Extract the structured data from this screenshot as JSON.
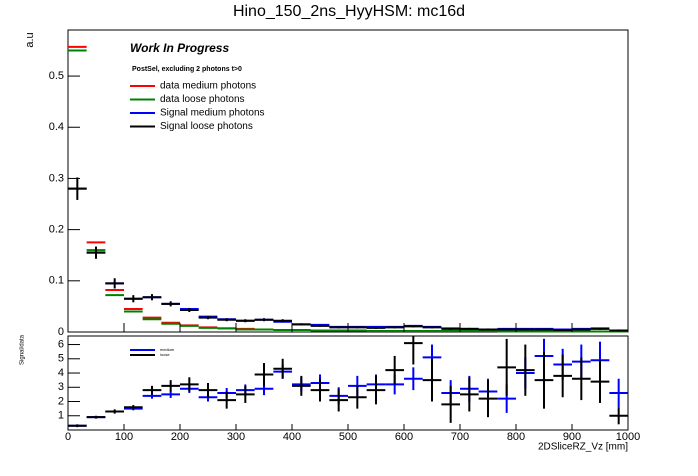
{
  "chart_data": [
    {
      "type": "histogram",
      "title": "Hino_150_2ns_HyyHSM: mc16d",
      "ylabel": "a.u",
      "annotations": [
        "Work In Progress",
        "PostSel, excluding 2 photons t>0"
      ],
      "bins": [
        0,
        33.3,
        66.7,
        100,
        133.3,
        166.7,
        200,
        233.3,
        266.7,
        300,
        333.3,
        366.7,
        400,
        433.3,
        466.7,
        500,
        533.3,
        566.7,
        600,
        633.3,
        666.7,
        700,
        733.3,
        766.7,
        800,
        833.3,
        866.7,
        900,
        933.3,
        966.7,
        1000
      ],
      "xlim": [
        0,
        1000
      ],
      "xticks": [
        0,
        100,
        200,
        300,
        400,
        500,
        600,
        700,
        800,
        900,
        1000
      ],
      "ylim": [
        0,
        0.59
      ],
      "yticks": [
        0,
        0.1,
        0.2,
        0.3,
        0.4,
        0.5
      ],
      "series": [
        {
          "name": "data medium photons",
          "color": "#ff0000",
          "values": [
            0.557,
            0.175,
            0.082,
            0.045,
            0.028,
            0.018,
            0.013,
            0.009,
            0.007,
            0.006,
            0.005,
            0.004,
            0.004,
            0.003,
            0.003,
            0.003,
            0.002,
            0.002,
            0.002,
            0.002,
            0.002,
            0.002,
            0.002,
            0.001,
            0.001,
            0.001,
            0.001,
            0.001,
            0.001,
            0.001
          ]
        },
        {
          "name": "data loose photons",
          "color": "#008000",
          "values": [
            0.55,
            0.16,
            0.072,
            0.04,
            0.025,
            0.016,
            0.012,
            0.008,
            0.007,
            0.005,
            0.005,
            0.004,
            0.004,
            0.003,
            0.003,
            0.003,
            0.002,
            0.002,
            0.002,
            0.002,
            0.002,
            0.002,
            0.002,
            0.001,
            0.001,
            0.001,
            0.001,
            0.001,
            0.001,
            0.001
          ]
        },
        {
          "name": "Signal medium photons",
          "color": "#0000ff",
          "values": [
            0.28,
            0.155,
            0.095,
            0.065,
            0.068,
            0.055,
            0.045,
            0.03,
            0.025,
            0.022,
            0.024,
            0.02,
            0.015,
            0.014,
            0.01,
            0.01,
            0.01,
            0.01,
            0.012,
            0.01,
            0.007,
            0.006,
            0.005,
            0.006,
            0.006,
            0.006,
            0.005,
            0.006,
            0.007,
            0.003
          ]
        },
        {
          "name": "Signal loose photons",
          "color": "#000000",
          "values": [
            0.28,
            0.155,
            0.095,
            0.065,
            0.068,
            0.055,
            0.043,
            0.028,
            0.024,
            0.022,
            0.024,
            0.022,
            0.015,
            0.012,
            0.009,
            0.009,
            0.008,
            0.009,
            0.011,
            0.009,
            0.006,
            0.006,
            0.005,
            0.005,
            0.005,
            0.005,
            0.004,
            0.005,
            0.006,
            0.003
          ],
          "errors": [
            0.022,
            0.012,
            0.01,
            0.007,
            0.006,
            0.005,
            0.004,
            0.003,
            0.003,
            0.003,
            0.003,
            0.003,
            0.002,
            0.002,
            0.002,
            0.002,
            0.002,
            0.002,
            0.002,
            0.002,
            0.002,
            0.002,
            0.002,
            0.002,
            0.002,
            0.002,
            0.002,
            0.002,
            0.002,
            0.002
          ]
        }
      ]
    },
    {
      "type": "histogram",
      "ylabel": "Signal/data",
      "xlabel": "2DSliceRZ_Vz [mm]",
      "bins": [
        0,
        33.3,
        66.7,
        100,
        133.3,
        166.7,
        200,
        233.3,
        266.7,
        300,
        333.3,
        366.7,
        400,
        433.3,
        466.7,
        500,
        533.3,
        566.7,
        600,
        633.3,
        666.7,
        700,
        733.3,
        766.7,
        800,
        833.3,
        866.7,
        900,
        933.3,
        966.7,
        1000
      ],
      "xlim": [
        0,
        1000
      ],
      "xticks": [
        0,
        100,
        200,
        300,
        400,
        500,
        600,
        700,
        800,
        900,
        1000
      ],
      "ylim": [
        0,
        6.6
      ],
      "yticks": [
        1,
        2,
        3,
        4,
        5,
        6
      ],
      "series": [
        {
          "name": "medium",
          "color": "#0000ff",
          "values": [
            0.3,
            0.9,
            1.3,
            1.5,
            2.4,
            2.5,
            2.9,
            2.3,
            2.6,
            2.8,
            2.9,
            4.1,
            3.2,
            3.3,
            2.4,
            3.1,
            3.2,
            3.2,
            3.6,
            5.1,
            2.6,
            2.9,
            2.7,
            2.2,
            4.0,
            5.2,
            4.6,
            4.8,
            4.9,
            2.6
          ],
          "errors": [
            0.05,
            0.08,
            0.1,
            0.12,
            0.2,
            0.25,
            0.3,
            0.3,
            0.35,
            0.4,
            0.45,
            0.5,
            0.5,
            0.6,
            0.6,
            0.7,
            0.7,
            0.7,
            0.8,
            0.9,
            0.9,
            0.9,
            0.9,
            1.0,
            1.1,
            1.2,
            1.1,
            1.2,
            1.3,
            1.0
          ]
        },
        {
          "name": "loose",
          "color": "#000000",
          "values": [
            0.3,
            0.9,
            1.3,
            1.6,
            2.8,
            3.1,
            3.2,
            2.8,
            2.1,
            2.5,
            3.9,
            4.3,
            3.1,
            2.8,
            2.1,
            2.3,
            2.8,
            4.2,
            6.1,
            3.5,
            1.8,
            2.5,
            2.2,
            4.4,
            4.2,
            3.5,
            3.8,
            3.6,
            3.4,
            1.0
          ],
          "errors": [
            0.1,
            0.1,
            0.15,
            0.15,
            0.3,
            0.4,
            0.5,
            0.5,
            0.6,
            0.6,
            0.8,
            0.7,
            0.7,
            0.8,
            0.8,
            0.8,
            1.0,
            1.0,
            1.5,
            1.5,
            1.3,
            1.2,
            1.3,
            2.0,
            1.8,
            2.0,
            1.5,
            1.5,
            1.5,
            0.6
          ]
        }
      ]
    }
  ]
}
